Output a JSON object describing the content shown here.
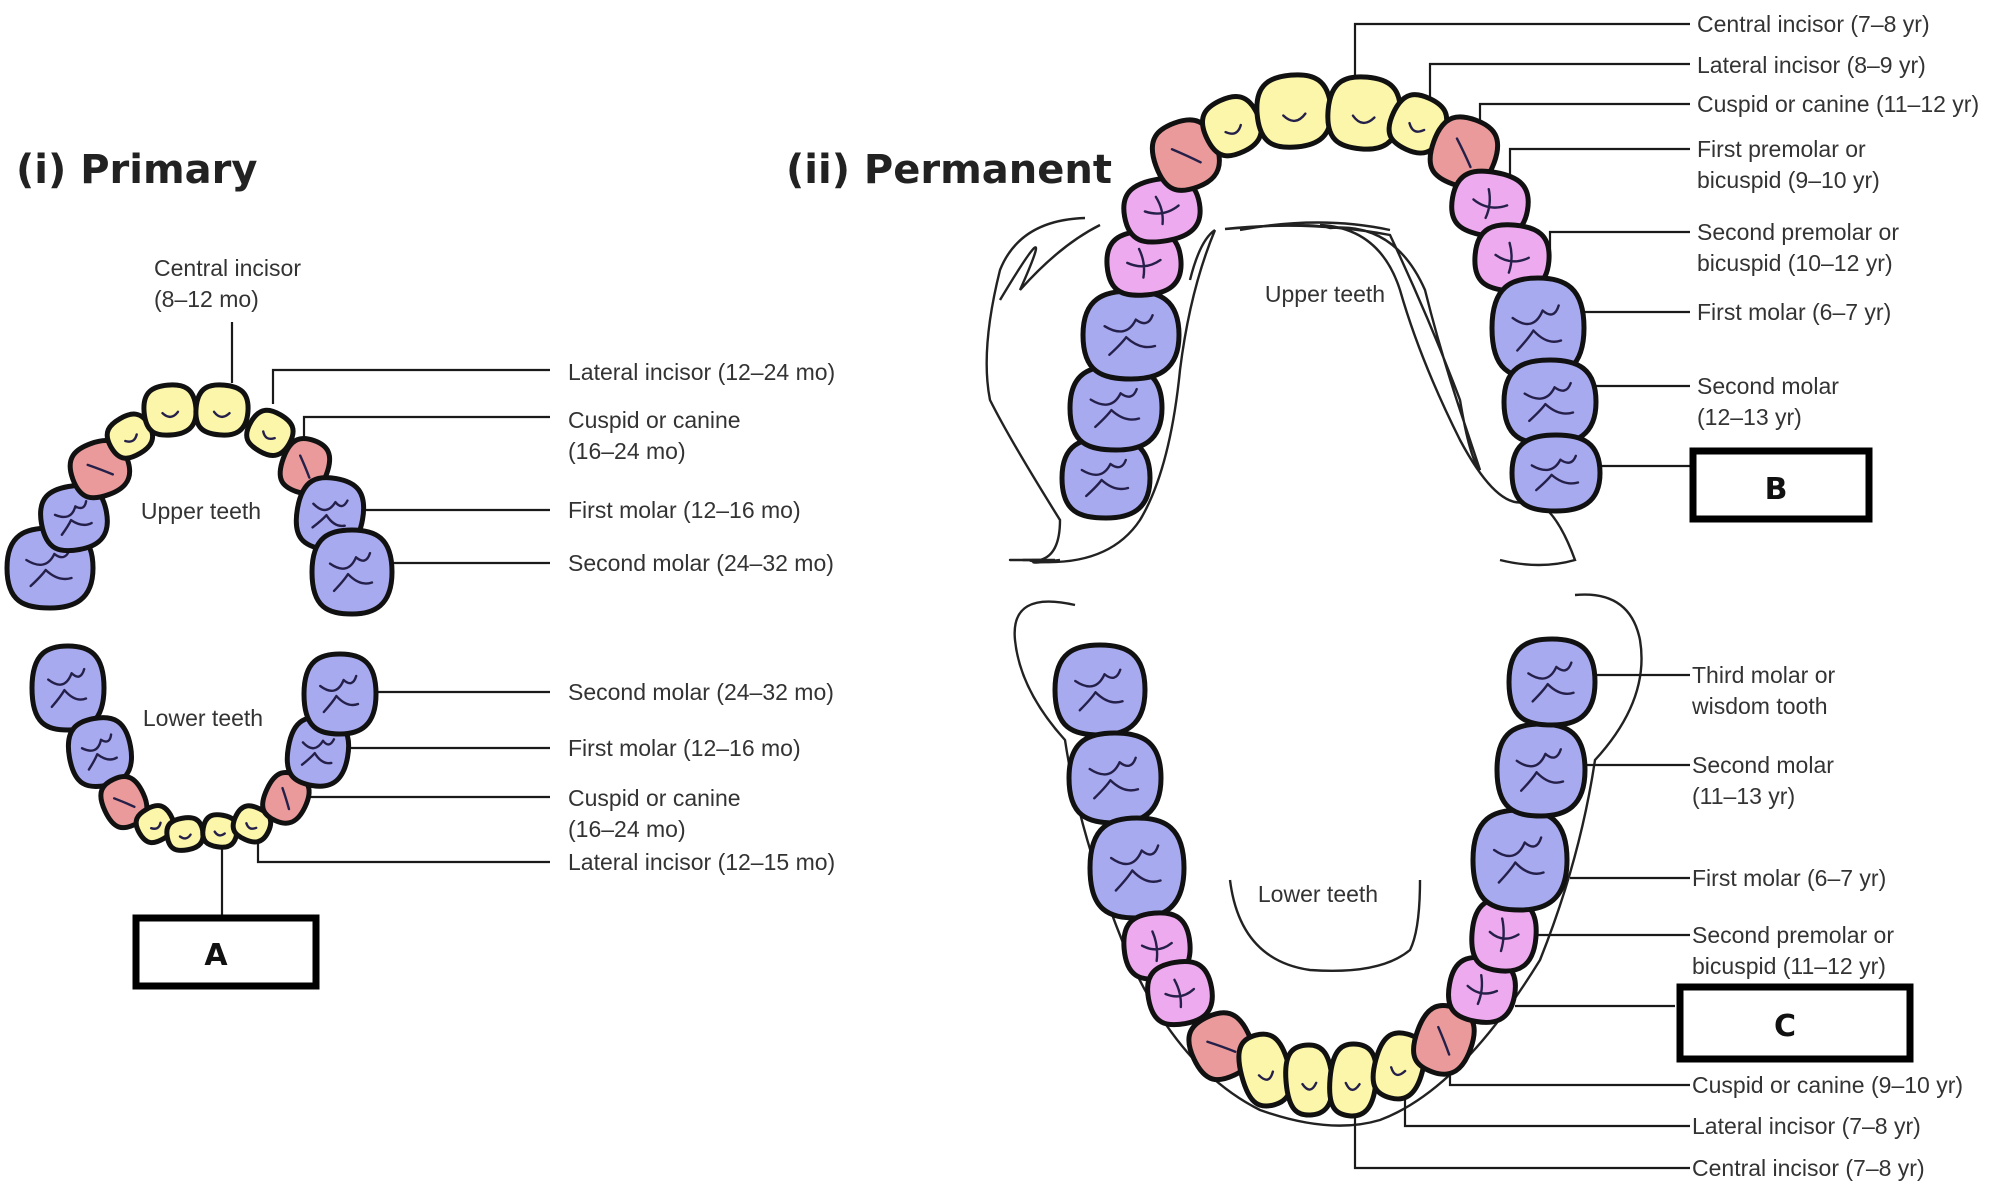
{
  "colors": {
    "incisor": "#fbf6aa",
    "canine": "#ea9a9a",
    "premolar": "#eeaaee",
    "molar": "#a8aaf0"
  },
  "primary": {
    "title": "(i) Primary",
    "upper_caption": "Upper teeth",
    "lower_caption": "Lower teeth",
    "upper_labels": [
      [
        "Central incisor",
        "(8–12 mo)"
      ],
      [
        "Lateral incisor (12–24 mo)"
      ],
      [
        "Cuspid or canine",
        "(16–24 mo)"
      ],
      [
        "First molar (12–16 mo)"
      ],
      [
        "Second molar (24–32 mo)"
      ]
    ],
    "lower_labels": [
      [
        "Second molar (24–32 mo)"
      ],
      [
        "First molar (12–16 mo)"
      ],
      [
        "Cuspid or canine",
        "(16–24 mo)"
      ],
      [
        "Lateral incisor (12–15 mo)"
      ]
    ],
    "answer_box": "A"
  },
  "permanent": {
    "title": "(ii) Permanent",
    "upper_caption": "Upper teeth",
    "lower_caption": "Lower teeth",
    "upper_labels": [
      [
        "Central incisor (7–8 yr)"
      ],
      [
        "Lateral incisor (8–9 yr)"
      ],
      [
        "Cuspid or canine (11–12 yr)"
      ],
      [
        "First premolar or",
        "bicuspid (9–10 yr)"
      ],
      [
        "Second premolar or",
        "bicuspid (10–12 yr)"
      ],
      [
        "First molar (6–7 yr)"
      ],
      [
        "Second molar",
        "(12–13 yr)"
      ]
    ],
    "upper_answer_box": "B",
    "lower_labels": [
      [
        "Third molar or",
        "wisdom tooth"
      ],
      [
        "Second molar",
        "(11–13 yr)"
      ],
      [
        "First molar (6–7 yr)"
      ],
      [
        "Second premolar or",
        "bicuspid (11–12 yr)"
      ],
      [
        "Cuspid or canine (9–10 yr)"
      ],
      [
        "Lateral incisor (7–8 yr)"
      ],
      [
        "Central incisor (7–8 yr)"
      ]
    ],
    "lower_answer_box": "C"
  }
}
